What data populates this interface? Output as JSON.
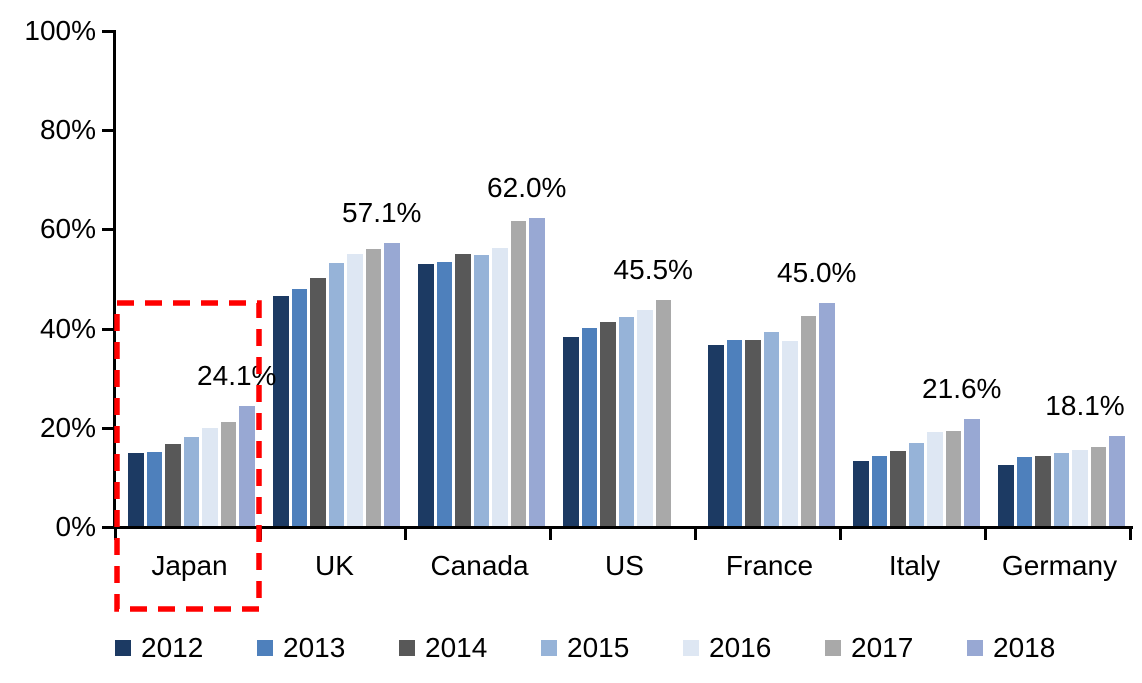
{
  "chart_data": {
    "type": "bar",
    "title": "",
    "xlabel": "",
    "ylabel": "",
    "categories": [
      "Japan",
      "UK",
      "Canada",
      "US",
      "France",
      "Italy",
      "Germany"
    ],
    "series": [
      {
        "name": "2012",
        "color": "#1C3A63",
        "values": [
          14.8,
          46.3,
          52.9,
          38.2,
          36.5,
          13.2,
          12.3
        ]
      },
      {
        "name": "2013",
        "color": "#4E80BC",
        "values": [
          15.0,
          47.7,
          53.3,
          40.0,
          37.6,
          14.1,
          13.9
        ]
      },
      {
        "name": "2014",
        "color": "#585858",
        "values": [
          16.5,
          50.0,
          54.8,
          41.1,
          37.5,
          15.2,
          14.2
        ]
      },
      {
        "name": "2015",
        "color": "#96B3D8",
        "values": [
          18.0,
          53.1,
          54.6,
          42.2,
          39.1,
          16.7,
          14.7
        ]
      },
      {
        "name": "2016",
        "color": "#DEE7F3",
        "values": [
          19.8,
          54.8,
          56.1,
          43.6,
          37.3,
          18.9,
          15.4
        ]
      },
      {
        "name": "2017",
        "color": "#A9A9A9",
        "values": [
          21.0,
          55.8,
          61.5,
          45.5,
          42.3,
          19.1,
          15.9
        ]
      },
      {
        "name": "2018",
        "color": "#98A8D3",
        "values": [
          24.1,
          57.1,
          62.0,
          null,
          45.0,
          21.6,
          18.1
        ]
      }
    ],
    "value_labels": [
      "24.1%",
      "57.1%",
      "62.0%",
      "45.5%",
      "45.0%",
      "21.6%",
      "18.1%"
    ],
    "y_axis": {
      "min": 0,
      "max": 100,
      "tick_step": 20,
      "ticks": [
        "0%",
        "20%",
        "40%",
        "60%",
        "80%",
        "100%"
      ]
    },
    "legend": {
      "position": "bottom",
      "entries": [
        "2012",
        "2013",
        "2014",
        "2015",
        "2016",
        "2017",
        "2018"
      ]
    },
    "highlight": {
      "category": "Japan",
      "style": "dashed-box",
      "color": "#FF0000"
    },
    "grid": false,
    "background": "#FFFFFF",
    "text_color": "#000000"
  }
}
